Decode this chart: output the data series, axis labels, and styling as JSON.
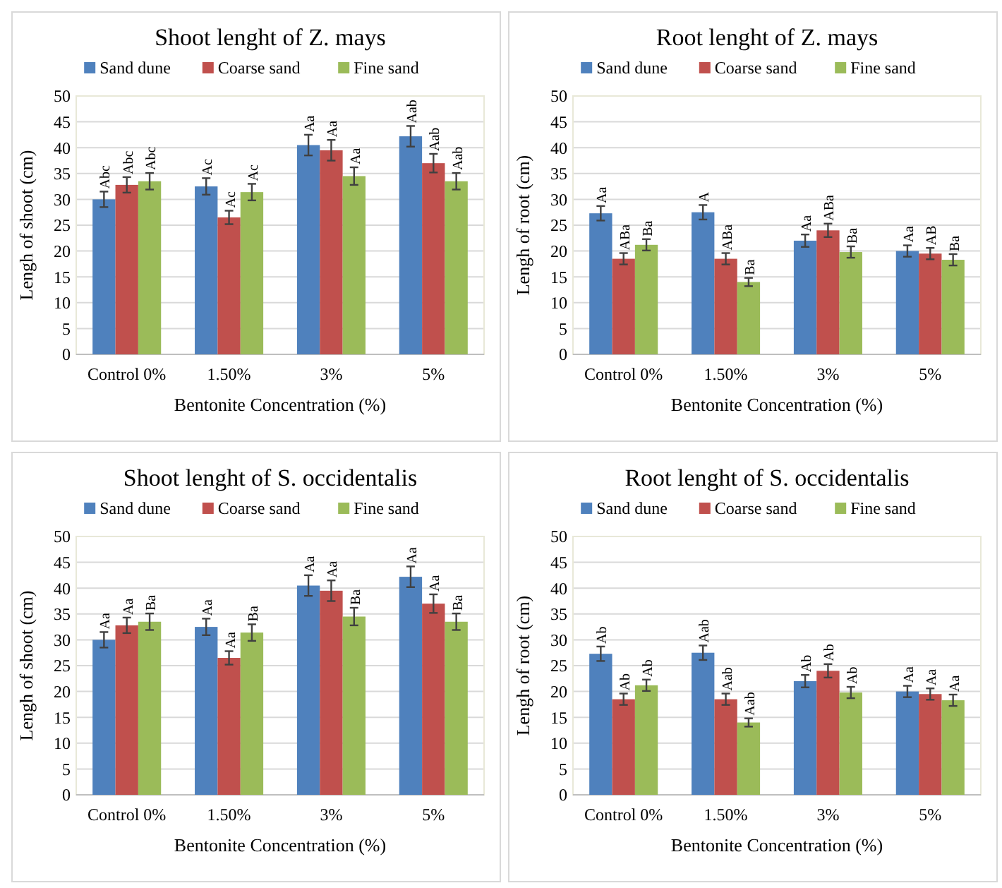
{
  "chart_data": [
    {
      "type": "bar",
      "title": "Shoot lenght of Z. mays",
      "xlabel": "Bentonite Concentration (%)",
      "ylabel": "Lengh of shoot (cm)",
      "categories": [
        "Control 0%",
        "1.50%",
        "3%",
        "5%"
      ],
      "ylim": [
        0,
        50
      ],
      "yticks": [
        0,
        5,
        10,
        15,
        20,
        25,
        30,
        35,
        40,
        45,
        50
      ],
      "grid": "y",
      "legend": "top",
      "series": [
        {
          "name": "Sand dune",
          "color": "#4f81bd",
          "values": [
            30,
            32.5,
            40.5,
            42.2
          ],
          "errors": [
            1.5,
            1.6,
            2,
            2
          ],
          "value_labels": [
            "Abc",
            "Ac",
            "Aa",
            "Aab"
          ]
        },
        {
          "name": "Coarse sand",
          "color": "#c0504d",
          "values": [
            32.8,
            26.5,
            39.5,
            37
          ],
          "errors": [
            1.5,
            1.3,
            2,
            1.8
          ],
          "value_labels": [
            "Abc",
            "Ac",
            "Aa",
            "Aab"
          ]
        },
        {
          "name": "Fine sand",
          "color": "#9bbb59",
          "values": [
            33.5,
            31.4,
            34.5,
            33.5
          ],
          "errors": [
            1.6,
            1.6,
            1.7,
            1.6
          ],
          "value_labels": [
            "Abc",
            "Ac",
            "Aa",
            "Aab"
          ]
        }
      ]
    },
    {
      "type": "bar",
      "title": "Root lenght of Z. mays",
      "xlabel": "Bentonite Concentration (%)",
      "ylabel": "Lengh of root (cm)",
      "categories": [
        "Control 0%",
        "1.50%",
        "3%",
        "5%"
      ],
      "ylim": [
        0,
        50
      ],
      "yticks": [
        0,
        5,
        10,
        15,
        20,
        25,
        30,
        35,
        40,
        45,
        50
      ],
      "grid": "y",
      "legend": "top",
      "series": [
        {
          "name": "Sand dune",
          "color": "#4f81bd",
          "values": [
            27.3,
            27.5,
            22,
            20
          ],
          "errors": [
            1.4,
            1.4,
            1.2,
            1.1
          ],
          "value_labels": [
            "Aa",
            "A",
            "Aa",
            "Aa"
          ]
        },
        {
          "name": "Coarse sand",
          "color": "#c0504d",
          "values": [
            18.5,
            18.5,
            24,
            19.5
          ],
          "errors": [
            1.1,
            1.1,
            1.3,
            1.1
          ],
          "value_labels": [
            "ABa",
            "ABa",
            "ABa",
            "AB"
          ]
        },
        {
          "name": "Fine sand",
          "color": "#9bbb59",
          "values": [
            21.2,
            14,
            19.8,
            18.3
          ],
          "errors": [
            1.1,
            0.8,
            1.1,
            1.1
          ],
          "value_labels": [
            "Ba",
            "Ba",
            "Ba",
            "Ba"
          ]
        }
      ]
    },
    {
      "type": "bar",
      "title": "Shoot lenght of S. occidentalis",
      "xlabel": "Bentonite Concentration (%)",
      "ylabel": "Lengh of shoot (cm)",
      "categories": [
        "Control 0%",
        "1.50%",
        "3%",
        "5%"
      ],
      "ylim": [
        0,
        50
      ],
      "yticks": [
        0,
        5,
        10,
        15,
        20,
        25,
        30,
        35,
        40,
        45,
        50
      ],
      "grid": "y",
      "legend": "top",
      "series": [
        {
          "name": "Sand dune",
          "color": "#4f81bd",
          "values": [
            30,
            32.5,
            40.5,
            42.2
          ],
          "errors": [
            1.5,
            1.6,
            2,
            2
          ],
          "value_labels": [
            "Aa",
            "Aa",
            "Aa",
            "Aa"
          ]
        },
        {
          "name": "Coarse sand",
          "color": "#c0504d",
          "values": [
            32.8,
            26.5,
            39.5,
            37
          ],
          "errors": [
            1.5,
            1.3,
            2,
            1.8
          ],
          "value_labels": [
            "Aa",
            "Aa",
            "Aa",
            "Aa"
          ]
        },
        {
          "name": "Fine sand",
          "color": "#9bbb59",
          "values": [
            33.5,
            31.4,
            34.5,
            33.5
          ],
          "errors": [
            1.6,
            1.6,
            1.7,
            1.6
          ],
          "value_labels": [
            "Ba",
            "Ba",
            "Ba",
            "Ba"
          ]
        }
      ]
    },
    {
      "type": "bar",
      "title": "Root lenght of S. occidentalis",
      "xlabel": "Bentonite Concentration (%)",
      "ylabel": "Lengh of root (cm)",
      "categories": [
        "Control 0%",
        "1.50%",
        "3%",
        "5%"
      ],
      "ylim": [
        0,
        50
      ],
      "yticks": [
        0,
        5,
        10,
        15,
        20,
        25,
        30,
        35,
        40,
        45,
        50
      ],
      "grid": "y",
      "legend": "top",
      "series": [
        {
          "name": "Sand dune",
          "color": "#4f81bd",
          "values": [
            27.3,
            27.5,
            22,
            20
          ],
          "errors": [
            1.4,
            1.4,
            1.2,
            1.1
          ],
          "value_labels": [
            "Ab",
            "Aab",
            "Ab",
            "Aa"
          ]
        },
        {
          "name": "Coarse sand",
          "color": "#c0504d",
          "values": [
            18.5,
            18.5,
            24,
            19.5
          ],
          "errors": [
            1.1,
            1.1,
            1.3,
            1.1
          ],
          "value_labels": [
            "Ab",
            "Aab",
            "Ab",
            "Aa"
          ]
        },
        {
          "name": "Fine sand",
          "color": "#9bbb59",
          "values": [
            21.2,
            14,
            19.8,
            18.3
          ],
          "errors": [
            1.1,
            0.8,
            1.1,
            1.1
          ],
          "value_labels": [
            "Ab",
            "Aab",
            "Ab",
            "Aa"
          ]
        }
      ]
    }
  ]
}
